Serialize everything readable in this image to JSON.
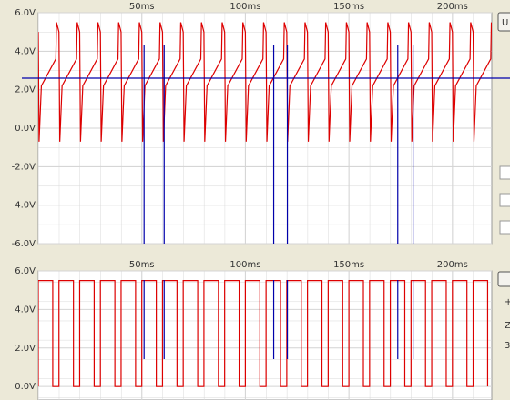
{
  "chart_data": [
    {
      "type": "line",
      "xlim": [
        0,
        219
      ],
      "ylim": [
        -6,
        6
      ],
      "xticks": [
        {
          "value": 50,
          "label": "50ms"
        },
        {
          "value": 100,
          "label": "100ms"
        },
        {
          "value": 150,
          "label": "150ms"
        },
        {
          "value": 200,
          "label": "200ms"
        }
      ],
      "yticks": [
        {
          "value": 6,
          "label": "6.0V"
        },
        {
          "value": 4,
          "label": "4.0V"
        },
        {
          "value": 2,
          "label": "2.0V"
        },
        {
          "value": 0,
          "label": "0.0V"
        },
        {
          "value": -2,
          "label": "-2.0V"
        },
        {
          "value": -4,
          "label": "-4.0V"
        },
        {
          "value": -6,
          "label": "-6.0V"
        }
      ],
      "grid": true,
      "x": [
        0,
        0.4,
        1.5,
        8.5,
        8.8,
        10,
        10.4,
        11.5,
        18.5,
        18.8,
        20,
        20.4,
        21.5,
        28.5,
        28.8,
        30,
        30.4,
        31.5,
        38.5,
        38.8,
        40,
        40.4,
        41.5,
        48.5,
        48.8,
        50,
        50.4,
        51.5,
        58.5,
        58.8,
        60,
        60.4,
        61.5,
        68.5,
        68.8,
        70,
        70.4,
        71.5,
        78.5,
        78.8,
        80,
        80.4,
        81.5,
        88.5,
        88.8,
        90,
        90.4,
        91.5,
        98.5,
        98.8,
        100,
        100.4,
        101.5,
        108.5,
        108.8,
        110,
        110.4,
        111.5,
        118.5,
        118.8,
        120,
        120.4,
        121.5,
        128.5,
        128.8,
        130,
        130.4,
        131.5,
        138.5,
        138.8,
        140,
        140.4,
        141.5,
        148.5,
        148.8,
        150,
        150.4,
        151.5,
        158.5,
        158.8,
        160,
        160.4,
        161.5,
        168.5,
        168.8,
        170,
        170.4,
        171.5,
        178.5,
        178.8,
        180,
        180.4,
        181.5,
        188.5,
        188.8,
        190,
        190.4,
        191.5,
        198.5,
        198.8,
        200,
        200.4,
        201.5,
        208.5,
        208.8,
        210,
        210.4,
        211.5,
        218.5,
        218.8
      ],
      "series": [
        {
          "color": "#dd0000",
          "values": [
            5,
            -0.7,
            2.2,
            3.6,
            5.5,
            5,
            -0.7,
            2.2,
            3.6,
            5.5,
            5,
            -0.7,
            2.2,
            3.6,
            5.5,
            5,
            -0.7,
            2.2,
            3.6,
            5.5,
            5,
            -0.7,
            2.2,
            3.6,
            5.5,
            5,
            -0.7,
            2.2,
            3.6,
            5.5,
            5,
            -0.7,
            2.2,
            3.6,
            5.5,
            5,
            -0.7,
            2.2,
            3.6,
            5.5,
            5,
            -0.7,
            2.2,
            3.6,
            5.5,
            5,
            -0.7,
            2.2,
            3.6,
            5.5,
            5,
            -0.7,
            2.2,
            3.6,
            5.5,
            5,
            -0.7,
            2.2,
            3.6,
            5.5,
            5,
            -0.7,
            2.2,
            3.6,
            5.5,
            5,
            -0.7,
            2.2,
            3.6,
            5.5,
            5,
            -0.7,
            2.2,
            3.6,
            5.5,
            5,
            -0.7,
            2.2,
            3.6,
            5.5,
            5,
            -0.7,
            2.2,
            3.6,
            5.5,
            5,
            -0.7,
            2.2,
            3.6,
            5.5,
            5,
            -0.7,
            2.2,
            3.6,
            5.5,
            5,
            -0.7,
            2.2,
            3.6,
            5.5,
            5,
            -0.7,
            2.2,
            3.6,
            5.5,
            5,
            -0.7,
            2.2,
            3.6,
            5.5
          ]
        }
      ],
      "cursors": {
        "color": "#0000aa",
        "x": [
          51.1,
          60.8,
          113.7,
          120.3,
          173.6,
          181
        ],
        "y": 2.6
      }
    },
    {
      "type": "line",
      "xlim": [
        0,
        219
      ],
      "ylim": [
        -0.7,
        6
      ],
      "xticks": [
        {
          "value": 50,
          "label": "50ms"
        },
        {
          "value": 100,
          "label": "100ms"
        },
        {
          "value": 150,
          "label": "150ms"
        },
        {
          "value": 200,
          "label": "200ms"
        }
      ],
      "yticks": [
        {
          "value": 6,
          "label": "6.0V"
        },
        {
          "value": 4,
          "label": "4.0V"
        },
        {
          "value": 2,
          "label": "2.0V"
        },
        {
          "value": 0,
          "label": "0.0V"
        }
      ],
      "grid": true,
      "x": [
        0,
        0,
        7,
        7,
        10,
        10,
        17,
        17,
        20,
        20,
        27,
        27,
        30,
        30,
        37,
        37,
        40,
        40,
        47,
        47,
        50,
        50,
        57,
        57,
        60,
        60,
        67,
        67,
        70,
        70,
        77,
        77,
        80,
        80,
        87,
        87,
        90,
        90,
        97,
        97,
        100,
        100,
        107,
        107,
        110,
        110,
        117,
        117,
        120,
        120,
        127,
        127,
        130,
        130,
        137,
        137,
        140,
        140,
        147,
        147,
        150,
        150,
        157,
        157,
        160,
        160,
        167,
        167,
        170,
        170,
        177,
        177,
        180,
        180,
        187,
        187,
        190,
        190,
        197,
        197,
        200,
        200,
        207,
        207,
        210,
        210,
        217,
        217
      ],
      "series": [
        {
          "color": "#dd0000",
          "values": [
            0,
            5.5,
            5.5,
            0,
            0,
            5.5,
            5.5,
            0,
            0,
            5.5,
            5.5,
            0,
            0,
            5.5,
            5.5,
            0,
            0,
            5.5,
            5.5,
            0,
            0,
            5.5,
            5.5,
            0,
            0,
            5.5,
            5.5,
            0,
            0,
            5.5,
            5.5,
            0,
            0,
            5.5,
            5.5,
            0,
            0,
            5.5,
            5.5,
            0,
            0,
            5.5,
            5.5,
            0,
            0,
            5.5,
            5.5,
            0,
            0,
            5.5,
            5.5,
            0,
            0,
            5.5,
            5.5,
            0,
            0,
            5.5,
            5.5,
            0,
            0,
            5.5,
            5.5,
            0,
            0,
            5.5,
            5.5,
            0,
            0,
            5.5,
            5.5,
            0,
            0,
            5.5,
            5.5,
            0,
            0,
            5.5,
            5.5,
            0,
            0,
            5.5,
            5.5,
            0,
            0,
            5.5,
            5.5,
            0
          ]
        }
      ]
    }
  ],
  "controls": {
    "button": "U",
    "labels": [
      "Z",
      "3"
    ]
  }
}
